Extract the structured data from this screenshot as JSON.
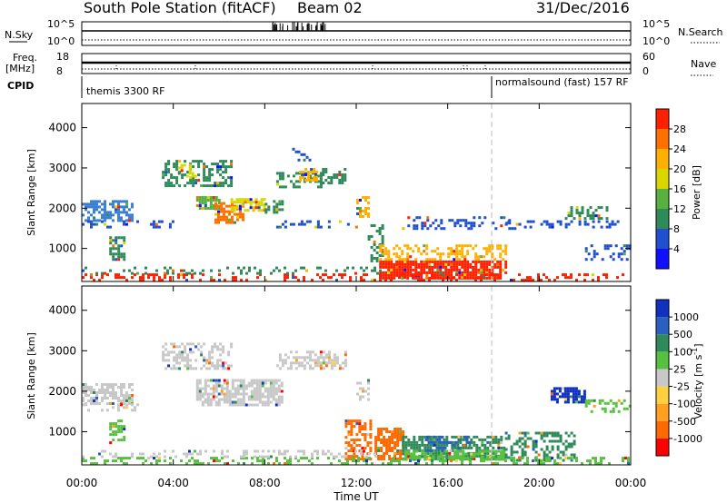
{
  "header": {
    "station": "South Pole Station (fitACF)",
    "beam": "Beam 02",
    "date": "31/Dec/2016"
  },
  "strips": {
    "nsky_label": "N.Sky",
    "nsky_ticks": [
      "10^5",
      "10^0"
    ],
    "nsearch_label": "N.Search",
    "nsearch_ticks": [
      "10^5",
      "10^0"
    ],
    "freq_label": "Freq.",
    "freq_unit": "[MHz]",
    "freq_ticks": [
      "18",
      "8"
    ],
    "nave_label": "Nave",
    "nave_ticks": [
      "60",
      "0"
    ],
    "cpid_label": "CPID",
    "cpid_left": "themis 3300 RF",
    "cpid_right": "normalsound (fast) 157 RF"
  },
  "chart_data": [
    {
      "type": "heatmap",
      "panel": "power",
      "ylabel": "Slant Range [km]",
      "ylim": [
        180,
        4600
      ],
      "yticks": [
        1000,
        2000,
        3000,
        4000
      ],
      "xlim": [
        0,
        24
      ],
      "xticks": [
        "00:00",
        "04:00",
        "08:00",
        "12:00",
        "16:00",
        "20:00",
        "00:00"
      ],
      "colorbar_label": "Power [dB]",
      "colorbar_ticks": [
        "28",
        "24",
        "20",
        "16",
        "12",
        "8",
        "4"
      ],
      "colorbar_colors": [
        "#1010ff",
        "#2050d0",
        "#2f8a5a",
        "#58b040",
        "#d8d800",
        "#ffb000",
        "#ff7000",
        "#ff2000"
      ],
      "regions": [
        {
          "t0": 0.0,
          "t1": 2.2,
          "r0": 1700,
          "r1": 2200,
          "c": "#3a7fd0",
          "d": 0.6
        },
        {
          "t0": 0.0,
          "t1": 2.4,
          "r0": 1500,
          "r1": 1700,
          "c": "#2050d0",
          "d": 0.35
        },
        {
          "t0": 1.2,
          "t1": 1.8,
          "r0": 700,
          "r1": 1300,
          "c": "#2f8a5a",
          "d": 0.6
        },
        {
          "t0": 2.5,
          "t1": 4.0,
          "r0": 1500,
          "r1": 1700,
          "c": "#2050d0",
          "d": 0.3
        },
        {
          "t0": 3.5,
          "t1": 6.5,
          "r0": 2550,
          "r1": 3200,
          "c": "#2f8a5a",
          "d": 0.45
        },
        {
          "t0": 4.2,
          "t1": 5.0,
          "r0": 2800,
          "r1": 3100,
          "c": "#d8d800",
          "d": 0.4
        },
        {
          "t0": 5.0,
          "t1": 6.0,
          "r0": 2000,
          "r1": 2300,
          "c": "#58b040",
          "d": 0.7
        },
        {
          "t0": 5.8,
          "t1": 7.0,
          "r0": 1650,
          "r1": 2150,
          "c": "#ff7000",
          "d": 0.65
        },
        {
          "t0": 6.5,
          "t1": 8.0,
          "r0": 1950,
          "r1": 2250,
          "c": "#d8d800",
          "d": 0.6
        },
        {
          "t0": 8.0,
          "t1": 8.8,
          "r0": 1900,
          "r1": 2200,
          "c": "#2f8a5a",
          "d": 0.6
        },
        {
          "t0": 8.5,
          "t1": 10.5,
          "r0": 2550,
          "r1": 2900,
          "c": "#2f8a5a",
          "d": 0.45
        },
        {
          "t0": 9.5,
          "t1": 10.3,
          "r0": 2700,
          "r1": 3000,
          "c": "#ffb000",
          "d": 0.5
        },
        {
          "t0": 10.5,
          "t1": 11.5,
          "r0": 2600,
          "r1": 3000,
          "c": "#2f8a5a",
          "d": 0.5
        },
        {
          "t0": 12.0,
          "t1": 12.5,
          "r0": 1800,
          "r1": 2300,
          "c": "#ffb000",
          "d": 0.6
        },
        {
          "t0": 8.5,
          "t1": 12.0,
          "r0": 1500,
          "r1": 1700,
          "c": "#2050d0",
          "d": 0.25
        },
        {
          "t0": 12.5,
          "t1": 13.2,
          "r0": 700,
          "r1": 1600,
          "c": "#2f8a5a",
          "d": 0.35
        },
        {
          "t0": 13.0,
          "t1": 18.5,
          "r0": 280,
          "r1": 700,
          "c": "#ff2000",
          "d": 0.85
        },
        {
          "t0": 13.0,
          "t1": 18.5,
          "r0": 700,
          "r1": 1100,
          "c": "#ffb000",
          "d": 0.45
        },
        {
          "t0": 14.0,
          "t1": 19.0,
          "r0": 1500,
          "r1": 1800,
          "c": "#2050d0",
          "d": 0.25
        },
        {
          "t0": 18.5,
          "t1": 23.5,
          "r0": 1500,
          "r1": 1700,
          "c": "#2050d0",
          "d": 0.3
        },
        {
          "t0": 21.0,
          "t1": 23.0,
          "r0": 1750,
          "r1": 2050,
          "c": "#2f8a5a",
          "d": 0.45
        },
        {
          "t0": 22.0,
          "t1": 24.0,
          "r0": 700,
          "r1": 1100,
          "c": "#2050d0",
          "d": 0.3
        },
        {
          "t0": 0.0,
          "t1": 24.0,
          "r0": 200,
          "r1": 380,
          "c": "#ff2000",
          "d": 0.25
        },
        {
          "t0": 0.0,
          "t1": 13.0,
          "r0": 380,
          "r1": 550,
          "c": "#2f8a5a",
          "d": 0.2
        },
        {
          "t0": 9.2,
          "t1": 10.0,
          "r0": 3200,
          "r1": 3500,
          "c": "#2050d0",
          "d": 0.3
        }
      ]
    },
    {
      "type": "heatmap",
      "panel": "velocity",
      "ylabel": "Slant Range [km]",
      "ylim": [
        180,
        4600
      ],
      "yticks": [
        1000,
        2000,
        3000,
        4000
      ],
      "xlim": [
        0,
        24
      ],
      "xticks": [
        "00:00",
        "04:00",
        "08:00",
        "12:00",
        "16:00",
        "20:00",
        "00:00"
      ],
      "xlabel": "Time UT",
      "colorbar_label": "Velocity [m s",
      "colorbar_unit_exp": "-1",
      "colorbar_unit_end": "]",
      "colorbar_ticks": [
        "1000",
        "500",
        "100",
        "25",
        "-25",
        "-100",
        "-500",
        "-1000"
      ],
      "colorbar_colors": [
        "#ff0000",
        "#ff6a00",
        "#ffa020",
        "#ffd040",
        "#c8c8c8",
        "#58c040",
        "#2f8a5a",
        "#2a60c0",
        "#1030c0"
      ],
      "regions": [
        {
          "t0": 0.0,
          "t1": 2.2,
          "r0": 1700,
          "r1": 2200,
          "c": "#c8c8c8",
          "d": 0.65
        },
        {
          "t0": 0.0,
          "t1": 2.4,
          "r0": 1500,
          "r1": 1700,
          "c": "#c8c8c8",
          "d": 0.3
        },
        {
          "t0": 1.2,
          "t1": 1.8,
          "r0": 700,
          "r1": 1300,
          "c": "#58c040",
          "d": 0.5
        },
        {
          "t0": 3.5,
          "t1": 6.5,
          "r0": 2550,
          "r1": 3200,
          "c": "#c8c8c8",
          "d": 0.45
        },
        {
          "t0": 5.0,
          "t1": 8.8,
          "r0": 1650,
          "r1": 2300,
          "c": "#c8c8c8",
          "d": 0.7
        },
        {
          "t0": 8.5,
          "t1": 11.5,
          "r0": 2550,
          "r1": 3000,
          "c": "#c8c8c8",
          "d": 0.5
        },
        {
          "t0": 12.0,
          "t1": 12.5,
          "r0": 1800,
          "r1": 2300,
          "c": "#c8c8c8",
          "d": 0.5
        },
        {
          "t0": 11.5,
          "t1": 12.6,
          "r0": 300,
          "r1": 1300,
          "c": "#ff6a00",
          "d": 0.55
        },
        {
          "t0": 12.8,
          "t1": 14.0,
          "r0": 300,
          "r1": 1100,
          "c": "#ff6a00",
          "d": 0.7
        },
        {
          "t0": 14.0,
          "t1": 18.5,
          "r0": 300,
          "r1": 900,
          "c": "#2f8a5a",
          "d": 0.7
        },
        {
          "t0": 14.0,
          "t1": 18.5,
          "r0": 300,
          "r1": 550,
          "c": "#58c040",
          "d": 0.6
        },
        {
          "t0": 15.0,
          "t1": 17.0,
          "r0": 500,
          "r1": 900,
          "c": "#2a60c0",
          "d": 0.35
        },
        {
          "t0": 18.5,
          "t1": 21.5,
          "r0": 300,
          "r1": 1000,
          "c": "#2f8a5a",
          "d": 0.4
        },
        {
          "t0": 20.5,
          "t1": 22.0,
          "r0": 1750,
          "r1": 2100,
          "c": "#1030c0",
          "d": 0.75
        },
        {
          "t0": 22.0,
          "t1": 24.0,
          "r0": 1500,
          "r1": 1800,
          "c": "#58c040",
          "d": 0.3
        },
        {
          "t0": 0.0,
          "t1": 24.0,
          "r0": 200,
          "r1": 380,
          "c": "#58c040",
          "d": 0.35
        },
        {
          "t0": 0.0,
          "t1": 13.0,
          "r0": 380,
          "r1": 550,
          "c": "#c8c8c8",
          "d": 0.25
        }
      ]
    }
  ]
}
